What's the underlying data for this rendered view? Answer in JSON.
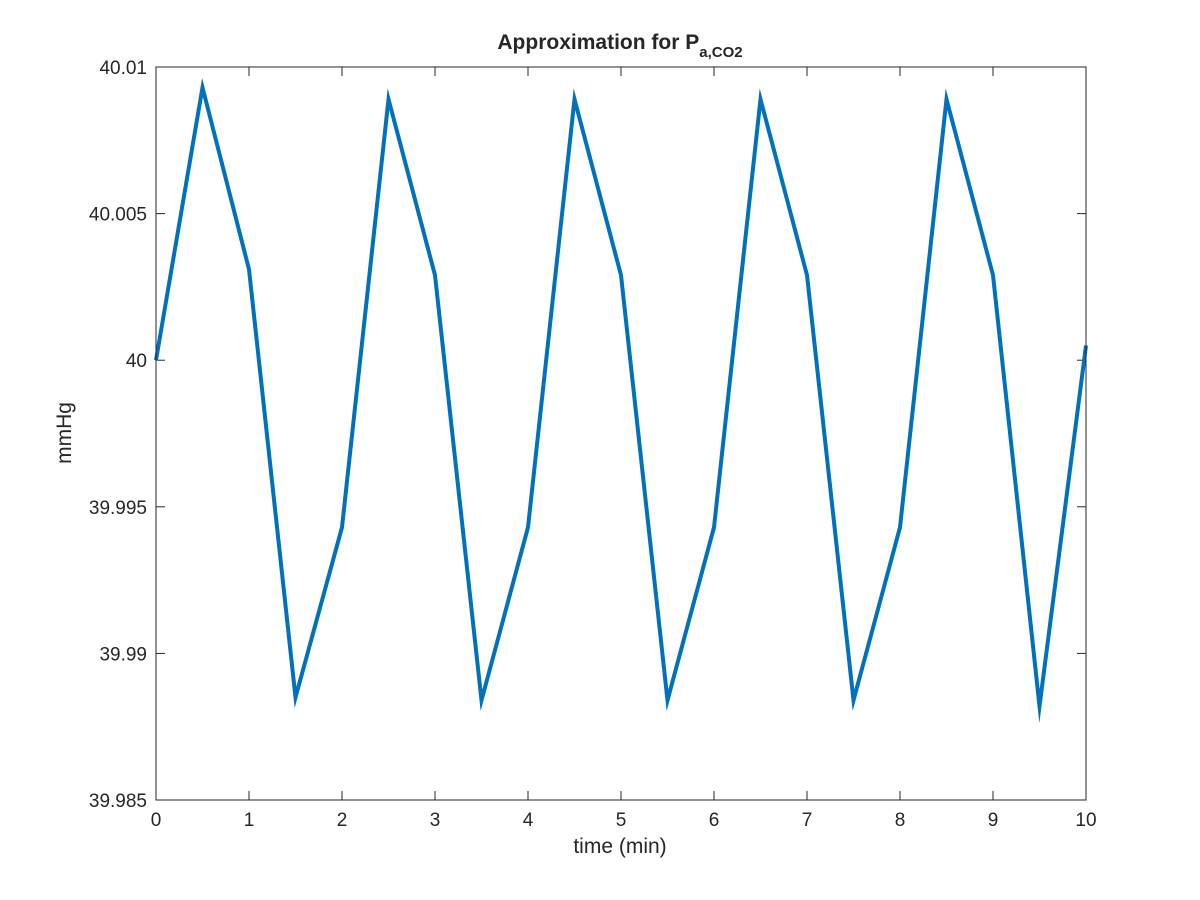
{
  "chart_data": {
    "type": "line",
    "title": "Approximation for P",
    "title_subscript": "a,CO2",
    "xlabel": "time (min)",
    "ylabel": "mmHg",
    "xlim": [
      0,
      10
    ],
    "ylim": [
      39.985,
      40.01
    ],
    "xticks": [
      0,
      1,
      2,
      3,
      4,
      5,
      6,
      7,
      8,
      9,
      10
    ],
    "xtick_labels": [
      "0",
      "1",
      "2",
      "3",
      "4",
      "5",
      "6",
      "7",
      "8",
      "9",
      "10"
    ],
    "yticks": [
      39.985,
      39.99,
      39.995,
      40,
      40.005,
      40.01
    ],
    "ytick_labels": [
      "39.985",
      "39.99",
      "39.995",
      "40",
      "40.005",
      "40.01"
    ],
    "grid": false,
    "series": [
      {
        "color": "#0072BD",
        "x": [
          0,
          0.5,
          1,
          1.5,
          2,
          2.5,
          3,
          3.5,
          4,
          4.5,
          5,
          5.5,
          6,
          6.5,
          7,
          7.5,
          8,
          8.5,
          9,
          9.5,
          10
        ],
        "y": [
          40.0,
          40.0093,
          40.0031,
          39.9885,
          39.9943,
          40.0089,
          40.0029,
          39.9884,
          39.9943,
          40.0089,
          40.0029,
          39.9884,
          39.9943,
          40.0089,
          40.0029,
          39.9884,
          39.9943,
          40.0089,
          40.0029,
          39.9882,
          40.0005
        ]
      }
    ]
  }
}
